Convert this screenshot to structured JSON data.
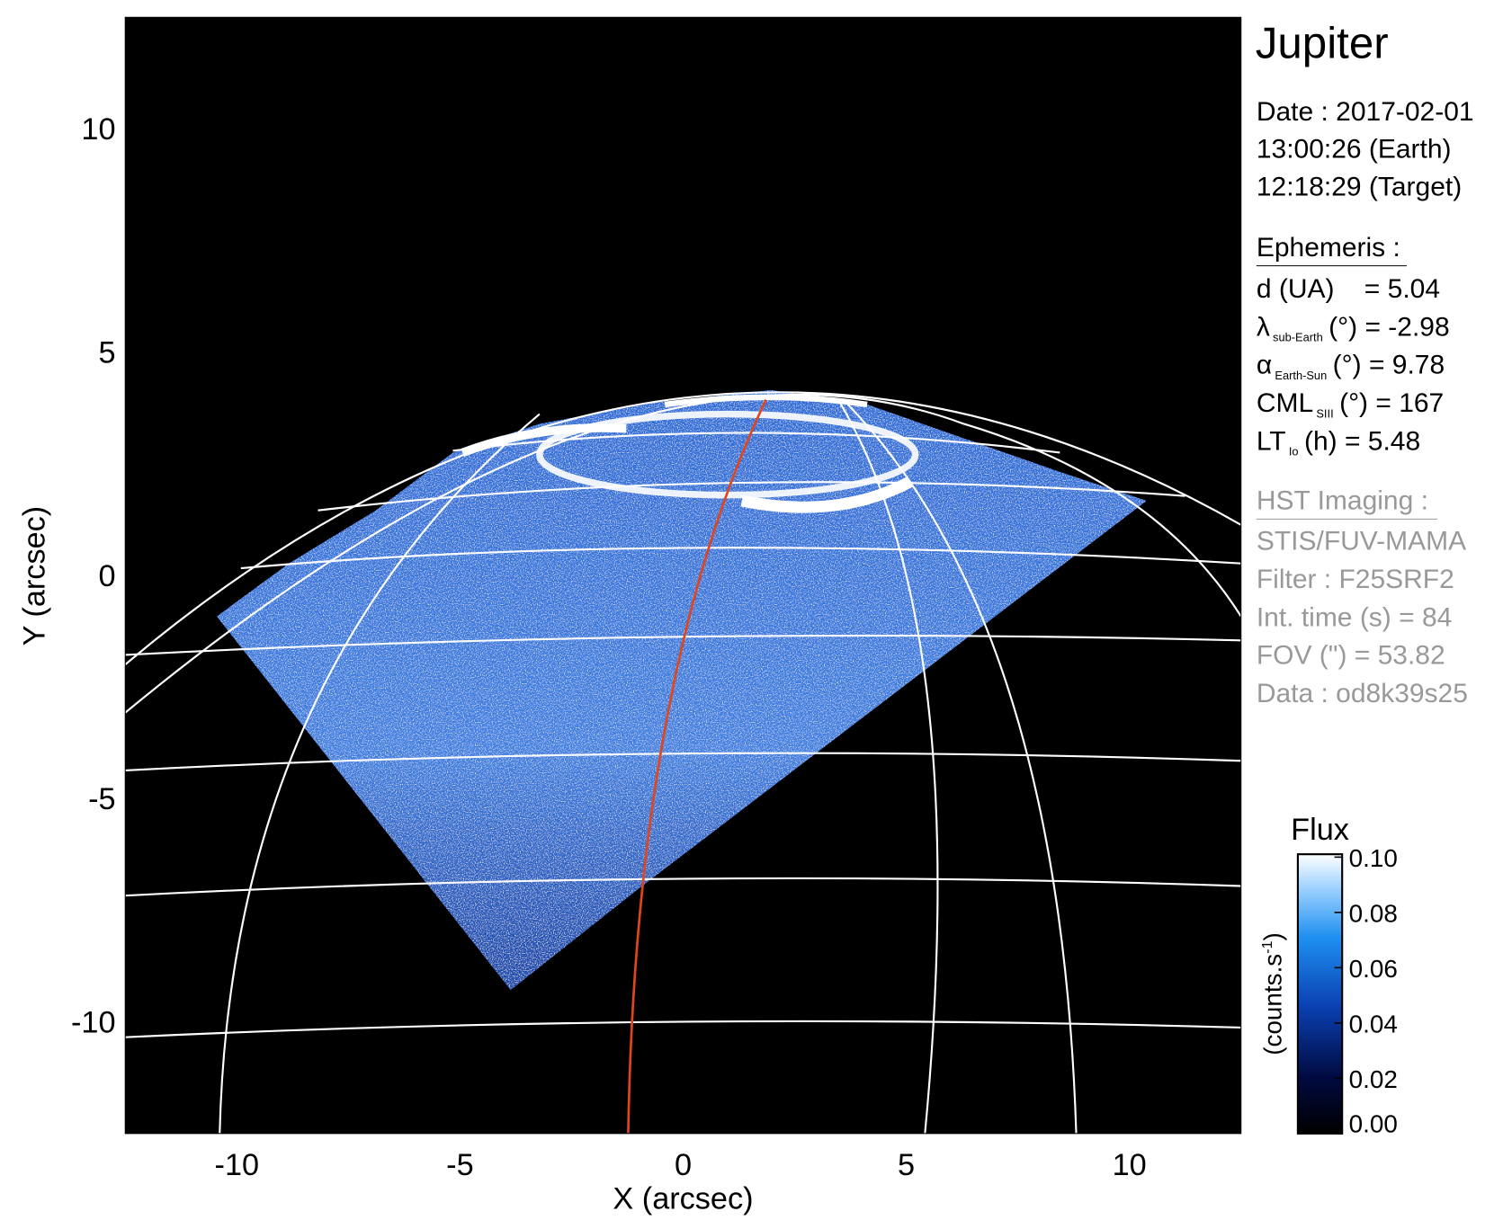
{
  "chart_data": {
    "type": "image",
    "title": "Jupiter",
    "xlabel": "X (arcsec)",
    "ylabel": "Y (arcsec)",
    "xlim": [
      -12.5,
      12.5
    ],
    "ylim": [
      -12.5,
      12.5
    ],
    "xticks": [
      -10,
      -5,
      0,
      5,
      10
    ],
    "yticks": [
      -10,
      -5,
      0,
      5,
      10
    ],
    "colorbar": {
      "title": "Flux",
      "label": "(counts.s",
      "label_sup": "-1",
      "label_end": ")",
      "lim": [
        0,
        0.1
      ],
      "ticks": [
        {
          "value": 0,
          "label": "0.00"
        },
        {
          "value": 0.02,
          "label": "0.02"
        },
        {
          "value": 0.04,
          "label": "0.04"
        },
        {
          "value": 0.06,
          "label": "0.06"
        },
        {
          "value": 0.08,
          "label": "0.08"
        },
        {
          "value": 0.1,
          "label": "0.10"
        }
      ]
    },
    "info": {
      "date_lines": [
        "Date : 2017-02-01",
        "13:00:26 (Earth)",
        "12:18:29 (Target)"
      ],
      "ephemeris_heading": "Ephemeris :",
      "ephemeris": [
        {
          "text": "d (UA)    = 5.04"
        },
        {
          "symbol": "λ",
          "sub": "sub-Earth",
          "text": "(°) = -2.98"
        },
        {
          "symbol": "α",
          "sub": "Earth-Sun",
          "text": "(°) = 9.78"
        },
        {
          "symbol": "CML",
          "sub": "SIII",
          "text": "(°) = 167"
        },
        {
          "symbol": "LT",
          "sub": "Io",
          "text": "(h) = 5.48"
        }
      ],
      "imaging_heading": "HST Imaging :",
      "imaging": [
        "STIS/FUV-MAMA",
        "Filter : F25SRF2",
        "Int. time (s) = 84",
        "FOV (\") = 53.82",
        "Data : od8k39s25"
      ]
    }
  }
}
